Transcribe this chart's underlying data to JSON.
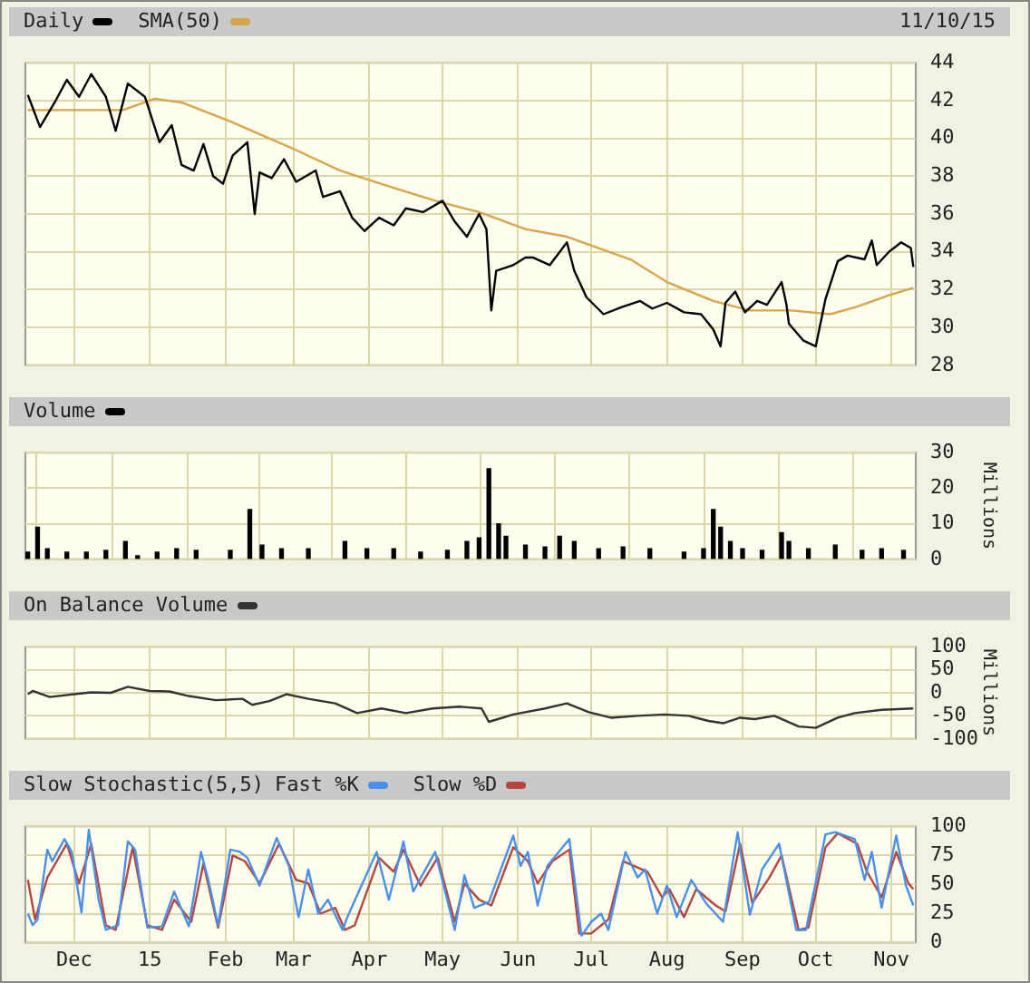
{
  "chart_data": [
    {
      "type": "line",
      "legend": "top left",
      "marker": "none",
      "grid": true,
      "tick_labels": "y",
      "annotations": [
        "11/10/15"
      ],
      "xlim": [
        "2014-11-11",
        "2015-11-11"
      ],
      "xticks": [
        {
          "value": "2014-12-01",
          "label": null
        },
        {
          "value": "2015-01-01",
          "label": null
        },
        {
          "value": "2015-02-01",
          "label": null
        },
        {
          "value": "2015-03-01",
          "label": null
        },
        {
          "value": "2015-04-01",
          "label": null
        },
        {
          "value": "2015-05-01",
          "label": null
        },
        {
          "value": "2015-06-01",
          "label": null
        },
        {
          "value": "2015-07-01",
          "label": null
        },
        {
          "value": "2015-08-01",
          "label": null
        },
        {
          "value": "2015-09-01",
          "label": null
        },
        {
          "value": "2015-10-01",
          "label": null
        },
        {
          "value": "2015-11-01",
          "label": null
        }
      ],
      "ylim": [
        28,
        44
      ],
      "yticks": [
        28,
        30,
        32,
        34,
        36,
        38,
        40,
        42,
        44
      ],
      "series": [
        {
          "name": "Daily",
          "color": "#000000",
          "x": [
            "2014-11-12",
            "2014-11-17",
            "2014-11-23",
            "2014-11-28",
            "2014-12-03",
            "2014-12-08",
            "2014-12-14",
            "2014-12-18",
            "2014-12-23",
            "2014-12-30",
            "2015-01-05",
            "2015-01-10",
            "2015-01-14",
            "2015-01-19",
            "2015-01-23",
            "2015-01-27",
            "2015-01-31",
            "2015-02-04",
            "2015-02-10",
            "2015-02-13",
            "2015-02-15",
            "2015-02-20",
            "2015-02-25",
            "2015-03-02",
            "2015-03-10",
            "2015-03-13",
            "2015-03-20",
            "2015-03-25",
            "2015-03-30",
            "2015-04-05",
            "2015-04-11",
            "2015-04-16",
            "2015-04-23",
            "2015-05-01",
            "2015-05-06",
            "2015-05-11",
            "2015-05-16",
            "2015-05-19",
            "2015-05-21",
            "2015-05-23",
            "2015-05-30",
            "2015-06-04",
            "2015-06-07",
            "2015-06-14",
            "2015-06-21",
            "2015-06-24",
            "2015-06-29",
            "2015-07-06",
            "2015-07-14",
            "2015-07-21",
            "2015-07-26",
            "2015-08-01",
            "2015-08-08",
            "2015-08-15",
            "2015-08-20",
            "2015-08-23",
            "2015-08-25",
            "2015-08-29",
            "2015-09-02",
            "2015-09-07",
            "2015-09-11",
            "2015-09-17",
            "2015-09-19",
            "2015-09-20",
            "2015-09-26",
            "2015-10-01",
            "2015-10-05",
            "2015-10-10",
            "2015-10-14",
            "2015-10-21",
            "2015-10-24",
            "2015-10-26",
            "2015-10-31",
            "2015-11-05",
            "2015-11-09",
            "2015-11-10"
          ],
          "values": [
            42.3,
            40.6,
            41.9,
            43.1,
            42.2,
            43.4,
            42.2,
            40.4,
            42.9,
            42.2,
            39.8,
            40.7,
            38.6,
            38.3,
            39.7,
            38.0,
            37.6,
            39.1,
            39.8,
            36.0,
            38.2,
            37.9,
            38.9,
            37.7,
            38.3,
            36.9,
            37.2,
            35.8,
            35.1,
            35.8,
            35.4,
            36.3,
            36.1,
            36.7,
            35.6,
            34.8,
            36.0,
            35.2,
            30.9,
            33.0,
            33.3,
            33.7,
            33.7,
            33.3,
            34.5,
            33.0,
            31.6,
            30.7,
            31.1,
            31.4,
            31.0,
            31.3,
            30.8,
            30.7,
            29.9,
            29.0,
            31.3,
            31.9,
            30.8,
            31.4,
            31.2,
            32.4,
            31.2,
            30.2,
            29.3,
            29.0,
            31.5,
            33.5,
            33.8,
            33.6,
            34.6,
            33.3,
            34.0,
            34.5,
            34.2,
            33.2
          ]
        },
        {
          "name": "SMA(50)",
          "color": "#d9a54a",
          "x": [
            "2014-11-12",
            "2014-12-21",
            "2015-01-03",
            "2015-01-14",
            "2015-02-03",
            "2015-02-28",
            "2015-03-20",
            "2015-04-08",
            "2015-04-28",
            "2015-05-16",
            "2015-06-04",
            "2015-06-21",
            "2015-07-17",
            "2015-08-01",
            "2015-08-20",
            "2015-09-04",
            "2015-09-21",
            "2015-10-07",
            "2015-10-18",
            "2015-10-31",
            "2015-11-10"
          ],
          "values": [
            41.5,
            41.5,
            42.1,
            41.9,
            40.9,
            39.5,
            38.3,
            37.5,
            36.7,
            36.1,
            35.2,
            34.8,
            33.6,
            32.4,
            31.4,
            30.9,
            30.9,
            30.7,
            31.1,
            31.7,
            32.1
          ]
        }
      ]
    },
    {
      "type": "bar",
      "legend": "top left",
      "grid": true,
      "tick_labels": "y",
      "ylabel": "Millions",
      "xlim": [
        "2014-11-11",
        "2015-11-11"
      ],
      "xticks": [
        {
          "value": "2014-12-01",
          "label": null
        },
        {
          "value": "2015-01-01",
          "label": null
        },
        {
          "value": "2015-02-01",
          "label": null
        },
        {
          "value": "2015-03-01",
          "label": null
        },
        {
          "value": "2015-04-01",
          "label": null
        },
        {
          "value": "2015-05-01",
          "label": null
        },
        {
          "value": "2015-06-01",
          "label": null
        },
        {
          "value": "2015-07-01",
          "label": null
        },
        {
          "value": "2015-08-01",
          "label": null
        },
        {
          "value": "2015-09-01",
          "label": null
        },
        {
          "value": "2015-10-01",
          "label": null
        },
        {
          "value": "2015-11-01",
          "label": null
        }
      ],
      "ylim": [
        0,
        30
      ],
      "yticks": [
        0,
        10,
        20,
        30
      ],
      "series": [
        {
          "name": "Volume",
          "color": "#000000",
          "x": [
            "2014-11-12",
            "2014-11-16",
            "2014-11-20",
            "2014-11-28",
            "2014-12-06",
            "2014-12-14",
            "2014-12-22",
            "2014-12-27",
            "2015-01-04",
            "2015-01-12",
            "2015-01-20",
            "2015-02-03",
            "2015-02-11",
            "2015-02-16",
            "2015-02-24",
            "2015-03-07",
            "2015-03-22",
            "2015-03-31",
            "2015-04-11",
            "2015-04-22",
            "2015-05-03",
            "2015-05-11",
            "2015-05-16",
            "2015-05-20",
            "2015-05-24",
            "2015-05-27",
            "2015-06-04",
            "2015-06-12",
            "2015-06-18",
            "2015-06-24",
            "2015-07-04",
            "2015-07-14",
            "2015-07-25",
            "2015-08-08",
            "2015-08-16",
            "2015-08-20",
            "2015-08-23",
            "2015-08-27",
            "2015-09-01",
            "2015-09-09",
            "2015-09-17",
            "2015-09-20",
            "2015-09-28",
            "2015-10-09",
            "2015-10-20",
            "2015-10-28",
            "2015-11-06"
          ],
          "values": [
            2,
            9,
            3,
            2,
            2,
            2.5,
            5,
            1,
            2,
            3,
            2.5,
            2.5,
            14,
            4,
            3,
            3,
            5,
            3,
            3,
            2,
            2.5,
            5,
            6,
            25.5,
            10,
            6.5,
            4,
            3.5,
            6.5,
            5,
            3,
            3.5,
            3,
            2,
            3,
            14,
            9,
            5,
            3,
            2.5,
            7.5,
            5,
            3,
            4,
            2.5,
            3,
            2.5
          ]
        }
      ]
    },
    {
      "type": "line",
      "legend": "top left",
      "marker": "none",
      "grid": true,
      "tick_labels": "y",
      "ylabel": "Millions",
      "xlim": [
        "2014-11-11",
        "2015-11-11"
      ],
      "xticks": [
        {
          "value": "2014-12-01",
          "label": null
        },
        {
          "value": "2015-01-01",
          "label": null
        },
        {
          "value": "2015-02-01",
          "label": null
        },
        {
          "value": "2015-03-01",
          "label": null
        },
        {
          "value": "2015-04-01",
          "label": null
        },
        {
          "value": "2015-05-01",
          "label": null
        },
        {
          "value": "2015-06-01",
          "label": null
        },
        {
          "value": "2015-07-01",
          "label": null
        },
        {
          "value": "2015-08-01",
          "label": null
        },
        {
          "value": "2015-09-01",
          "label": null
        },
        {
          "value": "2015-10-01",
          "label": null
        },
        {
          "value": "2015-11-01",
          "label": null
        }
      ],
      "ylim": [
        -100,
        100
      ],
      "yticks": [
        -100,
        -50,
        0,
        50,
        100
      ],
      "series": [
        {
          "name": "On Balance Volume",
          "color": "#333333",
          "x": [
            "2014-11-12",
            "2014-11-14",
            "2014-11-21",
            "2014-12-01",
            "2014-12-08",
            "2014-12-16",
            "2014-12-23",
            "2015-01-01",
            "2015-01-09",
            "2015-01-17",
            "2015-01-28",
            "2015-02-08",
            "2015-02-12",
            "2015-02-19",
            "2015-02-26",
            "2015-03-07",
            "2015-03-18",
            "2015-03-27",
            "2015-04-06",
            "2015-04-16",
            "2015-04-27",
            "2015-05-08",
            "2015-05-17",
            "2015-05-20",
            "2015-05-30",
            "2015-06-12",
            "2015-06-21",
            "2015-06-30",
            "2015-07-09",
            "2015-07-20",
            "2015-07-31",
            "2015-08-10",
            "2015-08-18",
            "2015-08-24",
            "2015-08-31",
            "2015-09-06",
            "2015-09-14",
            "2015-09-24",
            "2015-10-01",
            "2015-10-10",
            "2015-10-17",
            "2015-10-28",
            "2015-11-10"
          ],
          "values": [
            -3,
            4,
            -9,
            -3,
            1,
            0,
            13,
            4,
            3,
            -7,
            -16,
            -13,
            -26,
            -18,
            -3,
            -13,
            -23,
            -44,
            -34,
            -44,
            -34,
            -30,
            -34,
            -63,
            -47,
            -34,
            -23,
            -42,
            -54,
            -50,
            -47,
            -50,
            -61,
            -66,
            -54,
            -57,
            -50,
            -73,
            -76,
            -54,
            -44,
            -37,
            -34
          ]
        }
      ]
    },
    {
      "type": "line",
      "title": "Slow Stochastic(5,5)",
      "legend": "top left",
      "marker": "none",
      "grid": true,
      "xlim": [
        "2014-11-11",
        "2015-11-11"
      ],
      "xticks": [
        {
          "value": "2014-12-01",
          "label": "Dec"
        },
        {
          "value": "2015-01-01",
          "label": "15"
        },
        {
          "value": "2015-02-01",
          "label": "Feb"
        },
        {
          "value": "2015-03-01",
          "label": "Mar"
        },
        {
          "value": "2015-04-01",
          "label": "Apr"
        },
        {
          "value": "2015-05-01",
          "label": "May"
        },
        {
          "value": "2015-06-01",
          "label": "Jun"
        },
        {
          "value": "2015-07-01",
          "label": "Jul"
        },
        {
          "value": "2015-08-01",
          "label": "Aug"
        },
        {
          "value": "2015-09-01",
          "label": "Sep"
        },
        {
          "value": "2015-10-01",
          "label": "Oct"
        },
        {
          "value": "2015-11-01",
          "label": "Nov"
        }
      ],
      "ylim": [
        0,
        100
      ],
      "yticks": [
        0,
        25,
        50,
        75,
        100
      ],
      "series": [
        {
          "name": "Fast %K",
          "color": "#4a90e8",
          "x": [
            "2014-11-12",
            "2014-11-14",
            "2014-11-16",
            "2014-11-20",
            "2014-11-22",
            "2014-11-27",
            "2014-11-30",
            "2014-12-04",
            "2014-12-07",
            "2014-12-11",
            "2014-12-14",
            "2014-12-19",
            "2014-12-23",
            "2014-12-26",
            "2014-12-31",
            "2015-01-06",
            "2015-01-11",
            "2015-01-17",
            "2015-01-22",
            "2015-01-25",
            "2015-01-29",
            "2015-02-03",
            "2015-02-07",
            "2015-02-10",
            "2015-02-15",
            "2015-02-22",
            "2015-02-27",
            "2015-03-03",
            "2015-03-07",
            "2015-03-11",
            "2015-03-15",
            "2015-03-21",
            "2015-03-23",
            "2015-04-04",
            "2015-04-09",
            "2015-04-15",
            "2015-04-19",
            "2015-04-28",
            "2015-05-06",
            "2015-05-10",
            "2015-05-14",
            "2015-05-20",
            "2015-05-30",
            "2015-06-02",
            "2015-06-05",
            "2015-06-09",
            "2015-06-13",
            "2015-06-22",
            "2015-06-27",
            "2015-07-01",
            "2015-07-05",
            "2015-07-08",
            "2015-07-15",
            "2015-07-20",
            "2015-07-23",
            "2015-07-28",
            "2015-08-01",
            "2015-08-05",
            "2015-08-11",
            "2015-08-17",
            "2015-08-24",
            "2015-08-30",
            "2015-09-04",
            "2015-09-09",
            "2015-09-16",
            "2015-09-23",
            "2015-09-27",
            "2015-10-05",
            "2015-10-09",
            "2015-10-17",
            "2015-10-21",
            "2015-10-24",
            "2015-10-28",
            "2015-11-03",
            "2015-11-07",
            "2015-11-10"
          ],
          "values": [
            25,
            15,
            20,
            80,
            70,
            89,
            78,
            26,
            97,
            37,
            11,
            15,
            87,
            80,
            13,
            14,
            44,
            14,
            78,
            54,
            15,
            80,
            78,
            73,
            49,
            90,
            66,
            22,
            63,
            25,
            37,
            11,
            22,
            78,
            37,
            87,
            44,
            78,
            11,
            58,
            30,
            35,
            92,
            66,
            78,
            32,
            66,
            89,
            6,
            18,
            25,
            11,
            78,
            56,
            63,
            25,
            49,
            22,
            54,
            34,
            18,
            95,
            24,
            63,
            85,
            11,
            11,
            93,
            95,
            89,
            54,
            78,
            30,
            92,
            49,
            32
          ]
        },
        {
          "name": "Slow %D",
          "color": "#b5453f",
          "x": [
            "2014-11-12",
            "2014-11-15",
            "2014-11-20",
            "2014-11-28",
            "2014-12-03",
            "2014-12-08",
            "2014-12-14",
            "2014-12-18",
            "2014-12-25",
            "2014-12-31",
            "2015-01-06",
            "2015-01-11",
            "2015-01-18",
            "2015-01-23",
            "2015-01-29",
            "2015-02-04",
            "2015-02-09",
            "2015-02-15",
            "2015-02-23",
            "2015-03-02",
            "2015-03-07",
            "2015-03-12",
            "2015-03-18",
            "2015-03-22",
            "2015-03-26",
            "2015-04-05",
            "2015-04-11",
            "2015-04-15",
            "2015-04-22",
            "2015-04-29",
            "2015-05-06",
            "2015-05-10",
            "2015-05-16",
            "2015-05-21",
            "2015-05-30",
            "2015-06-05",
            "2015-06-09",
            "2015-06-15",
            "2015-06-22",
            "2015-06-26",
            "2015-07-01",
            "2015-07-08",
            "2015-07-14",
            "2015-07-24",
            "2015-07-30",
            "2015-08-02",
            "2015-08-08",
            "2015-08-13",
            "2015-08-21",
            "2015-08-25",
            "2015-08-31",
            "2015-09-05",
            "2015-09-12",
            "2015-09-17",
            "2015-09-24",
            "2015-09-28",
            "2015-10-05",
            "2015-10-10",
            "2015-10-18",
            "2015-10-22",
            "2015-10-28",
            "2015-11-03",
            "2015-11-08",
            "2015-11-10"
          ],
          "values": [
            54,
            20,
            56,
            85,
            51,
            85,
            15,
            11,
            82,
            15,
            11,
            37,
            18,
            68,
            13,
            75,
            70,
            51,
            85,
            54,
            51,
            25,
            30,
            11,
            15,
            73,
            61,
            80,
            49,
            73,
            18,
            51,
            37,
            32,
            82,
            70,
            51,
            70,
            80,
            8,
            8,
            20,
            70,
            61,
            39,
            46,
            22,
            46,
            32,
            27,
            85,
            34,
            56,
            75,
            11,
            13,
            82,
            94,
            85,
            61,
            39,
            78,
            51,
            46
          ]
        }
      ]
    }
  ]
}
